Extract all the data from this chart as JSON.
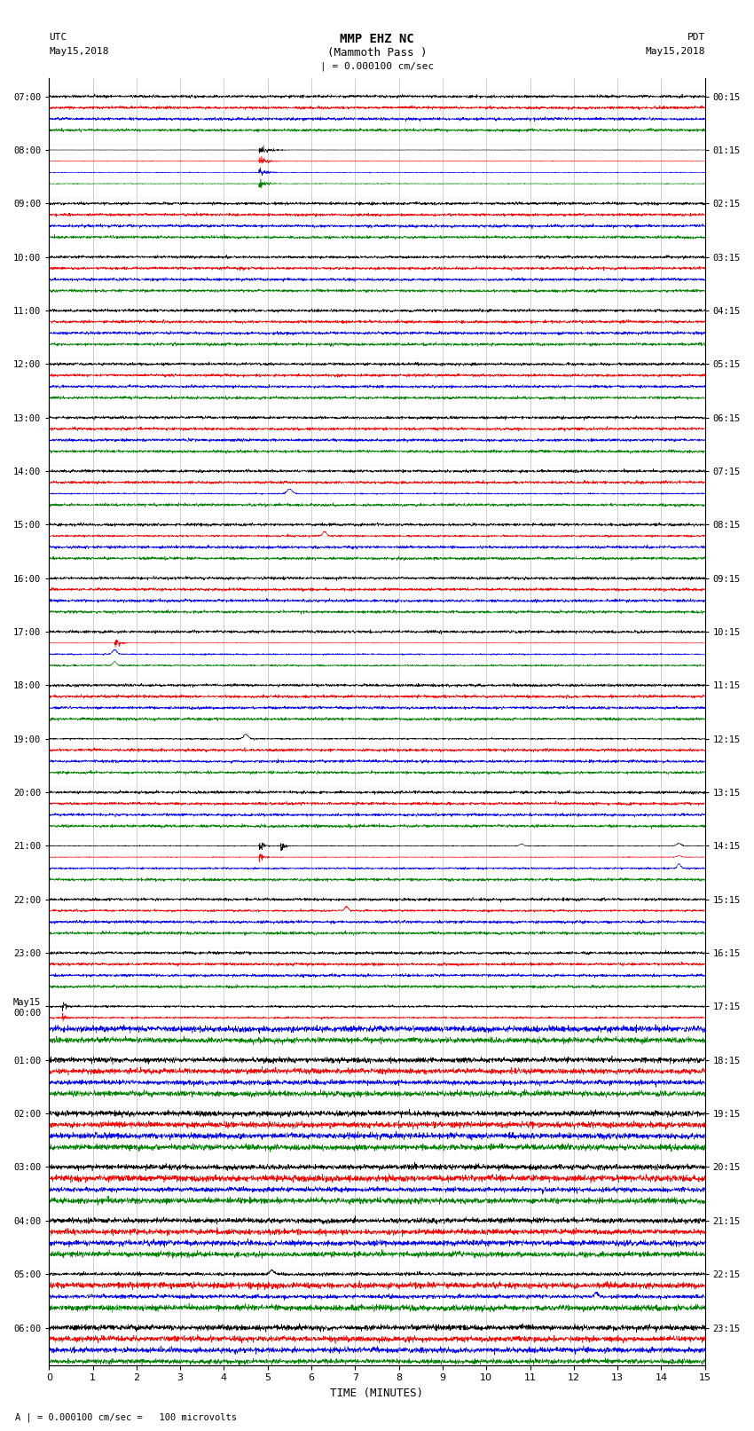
{
  "title_line1": "MMP EHZ NC",
  "title_line2": "(Mammoth Pass )",
  "scale_text": "| = 0.000100 cm/sec",
  "bottom_text": "A | = 0.000100 cm/sec =   100 microvolts",
  "xlabel": "TIME (MINUTES)",
  "utc_label": "UTC\nMay15,2018",
  "pdt_label": "PDT\nMay15,2018",
  "left_times": [
    "07:00",
    "08:00",
    "09:00",
    "10:00",
    "11:00",
    "12:00",
    "13:00",
    "14:00",
    "15:00",
    "16:00",
    "17:00",
    "18:00",
    "19:00",
    "20:00",
    "21:00",
    "22:00",
    "23:00",
    "May15\n00:00",
    "01:00",
    "02:00",
    "03:00",
    "04:00",
    "05:00",
    "06:00"
  ],
  "right_times": [
    "00:15",
    "01:15",
    "02:15",
    "03:15",
    "04:15",
    "05:15",
    "06:15",
    "07:15",
    "08:15",
    "09:15",
    "10:15",
    "11:15",
    "12:15",
    "13:15",
    "14:15",
    "15:15",
    "16:15",
    "17:15",
    "18:15",
    "19:15",
    "20:15",
    "21:15",
    "22:15",
    "23:15"
  ],
  "n_rows": 24,
  "traces_per_row": 4,
  "colors": [
    "black",
    "red",
    "blue",
    "green"
  ],
  "bg_color": "#ffffff",
  "plot_bg": "#ffffff",
  "minutes": 15,
  "seed": 42
}
